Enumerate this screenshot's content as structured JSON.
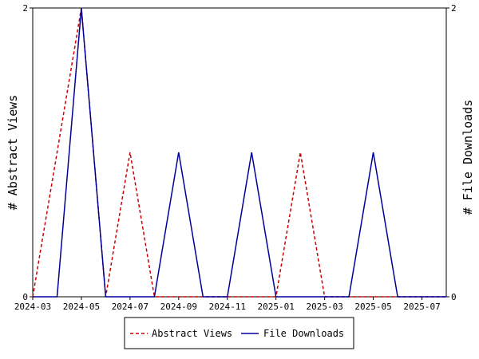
{
  "chart_data": {
    "type": "line",
    "x": [
      "2024-03",
      "2024-04",
      "2024-05",
      "2024-06",
      "2024-07",
      "2024-08",
      "2024-09",
      "2024-10",
      "2024-11",
      "2024-12",
      "2025-01",
      "2025-02",
      "2025-03",
      "2025-04",
      "2025-05",
      "2025-06",
      "2025-07",
      "2025-08"
    ],
    "x_ticks": [
      "2024-03",
      "2024-05",
      "2024-07",
      "2024-09",
      "2024-11",
      "2025-01",
      "2025-03",
      "2025-05",
      "2025-07"
    ],
    "series": [
      {
        "name": "Abstract Views",
        "axis": "left",
        "color": "#cc0000",
        "dash": "dashed",
        "values": [
          0,
          1,
          2,
          0,
          1,
          0,
          0,
          0,
          0,
          0,
          0,
          1,
          0,
          0,
          0,
          0,
          0,
          0
        ]
      },
      {
        "name": "File Downloads",
        "axis": "right",
        "color": "#000099",
        "dash": "solid",
        "values": [
          0,
          0,
          2,
          0,
          0,
          0,
          1,
          0,
          0,
          1,
          0,
          0,
          0,
          0,
          1,
          0,
          0,
          0
        ]
      }
    ],
    "ylabel_left": "# Abstract Views",
    "ylabel_right": "# File Downloads",
    "ylim_left": [
      0,
      2
    ],
    "ylim_right": [
      0,
      2
    ],
    "y_ticks_left": [
      "0",
      "2"
    ],
    "y_ticks_right": [
      "0",
      "2"
    ],
    "legend": {
      "position": "bottom",
      "entries": [
        "Abstract Views",
        "File Downloads"
      ]
    }
  }
}
